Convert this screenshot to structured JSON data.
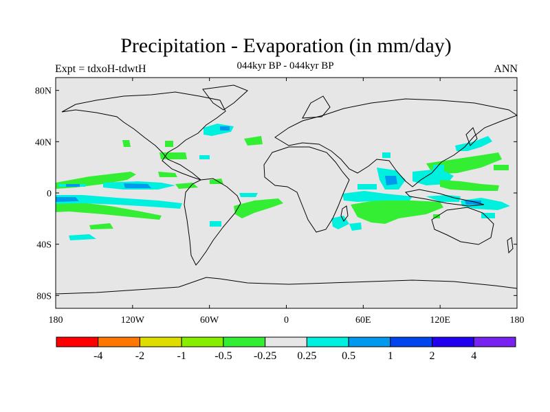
{
  "title": "Precipitation - Evaporation (in mm/day)",
  "subtitle": "044kyr BP - 044kyr BP",
  "left_label": "Expt = tdxoH-tdwtH",
  "right_label": "ANN",
  "colors": {
    "land_ocean_background": "#e6e6e6",
    "coastline": "#000000",
    "green_negative": "#33ee33",
    "cyan_positive": "#00f0e0",
    "blue_positive": "#0099ee"
  },
  "map": {
    "lat_ticks": [
      {
        "label": "80N",
        "lat": 80
      },
      {
        "label": "40N",
        "lat": 40
      },
      {
        "label": "0",
        "lat": 0
      },
      {
        "label": "40S",
        "lat": -40
      },
      {
        "label": "80S",
        "lat": -80
      }
    ],
    "lon_ticks": [
      {
        "label": "180",
        "lon": -180
      },
      {
        "label": "120W",
        "lon": -120
      },
      {
        "label": "60W",
        "lon": -60
      },
      {
        "label": "0",
        "lon": 0
      },
      {
        "label": "60E",
        "lon": 60
      },
      {
        "label": "120E",
        "lon": 120
      },
      {
        "label": "180",
        "lon": 180
      }
    ],
    "lon_range": [
      -180,
      180
    ],
    "lat_range": [
      -90,
      90
    ]
  },
  "colorbar": {
    "colors": [
      "#ff0000",
      "#ff7700",
      "#dddd00",
      "#88ee00",
      "#33ee33",
      "#e6e6e6",
      "#00f0e0",
      "#0099ee",
      "#0044ee",
      "#2200ee",
      "#7722ee"
    ],
    "labels": [
      "-4",
      "-2",
      "-1",
      "-0.5",
      "-0.25",
      "0.25",
      "0.5",
      "1",
      "2",
      "4"
    ]
  }
}
